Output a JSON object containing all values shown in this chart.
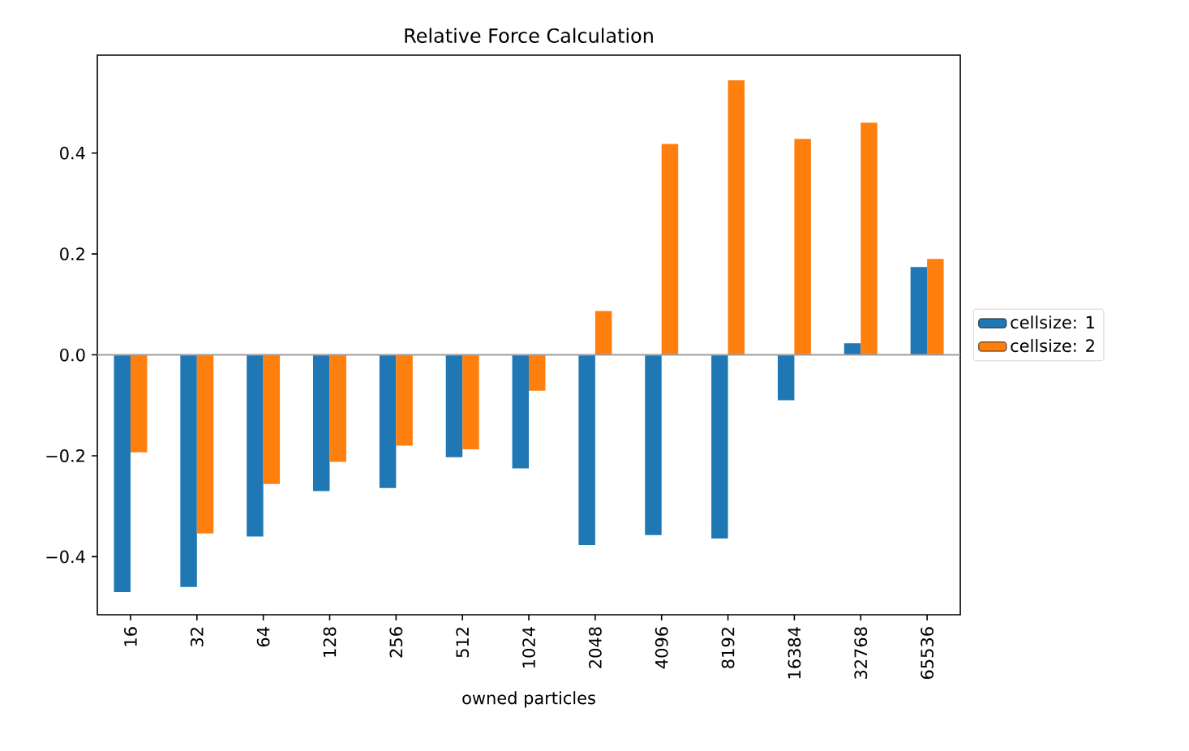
{
  "chart_data": {
    "type": "bar",
    "title": "Relative Force Calculation",
    "xlabel": "owned particles",
    "categories": [
      "16",
      "32",
      "64",
      "128",
      "256",
      "512",
      "1024",
      "2048",
      "4096",
      "8192",
      "16384",
      "32768",
      "65536"
    ],
    "series": [
      {
        "name": "cellsize: 1",
        "color": "#1f77b4",
        "values": [
          -0.47,
          -0.46,
          -0.36,
          -0.27,
          -0.264,
          -0.203,
          -0.225,
          -0.377,
          -0.357,
          -0.364,
          -0.09,
          0.023,
          0.174
        ]
      },
      {
        "name": "cellsize: 2",
        "color": "#ff7f0e",
        "values": [
          -0.193,
          -0.354,
          -0.256,
          -0.212,
          -0.18,
          -0.187,
          -0.071,
          0.087,
          0.418,
          0.544,
          0.428,
          0.46,
          0.19
        ]
      }
    ],
    "ylim": [
      -0.515,
      0.594
    ],
    "yticks": [
      {
        "value": -0.4,
        "label": "−0.4"
      },
      {
        "value": -0.2,
        "label": "−0.2"
      },
      {
        "value": 0.0,
        "label": "0.0"
      },
      {
        "value": 0.2,
        "label": "0.2"
      },
      {
        "value": 0.4,
        "label": "0.4"
      }
    ],
    "ref_lines": [
      {
        "axis": "y",
        "value": 0,
        "color": "#a0a0a0"
      }
    ],
    "grid": false,
    "legend": "right"
  }
}
